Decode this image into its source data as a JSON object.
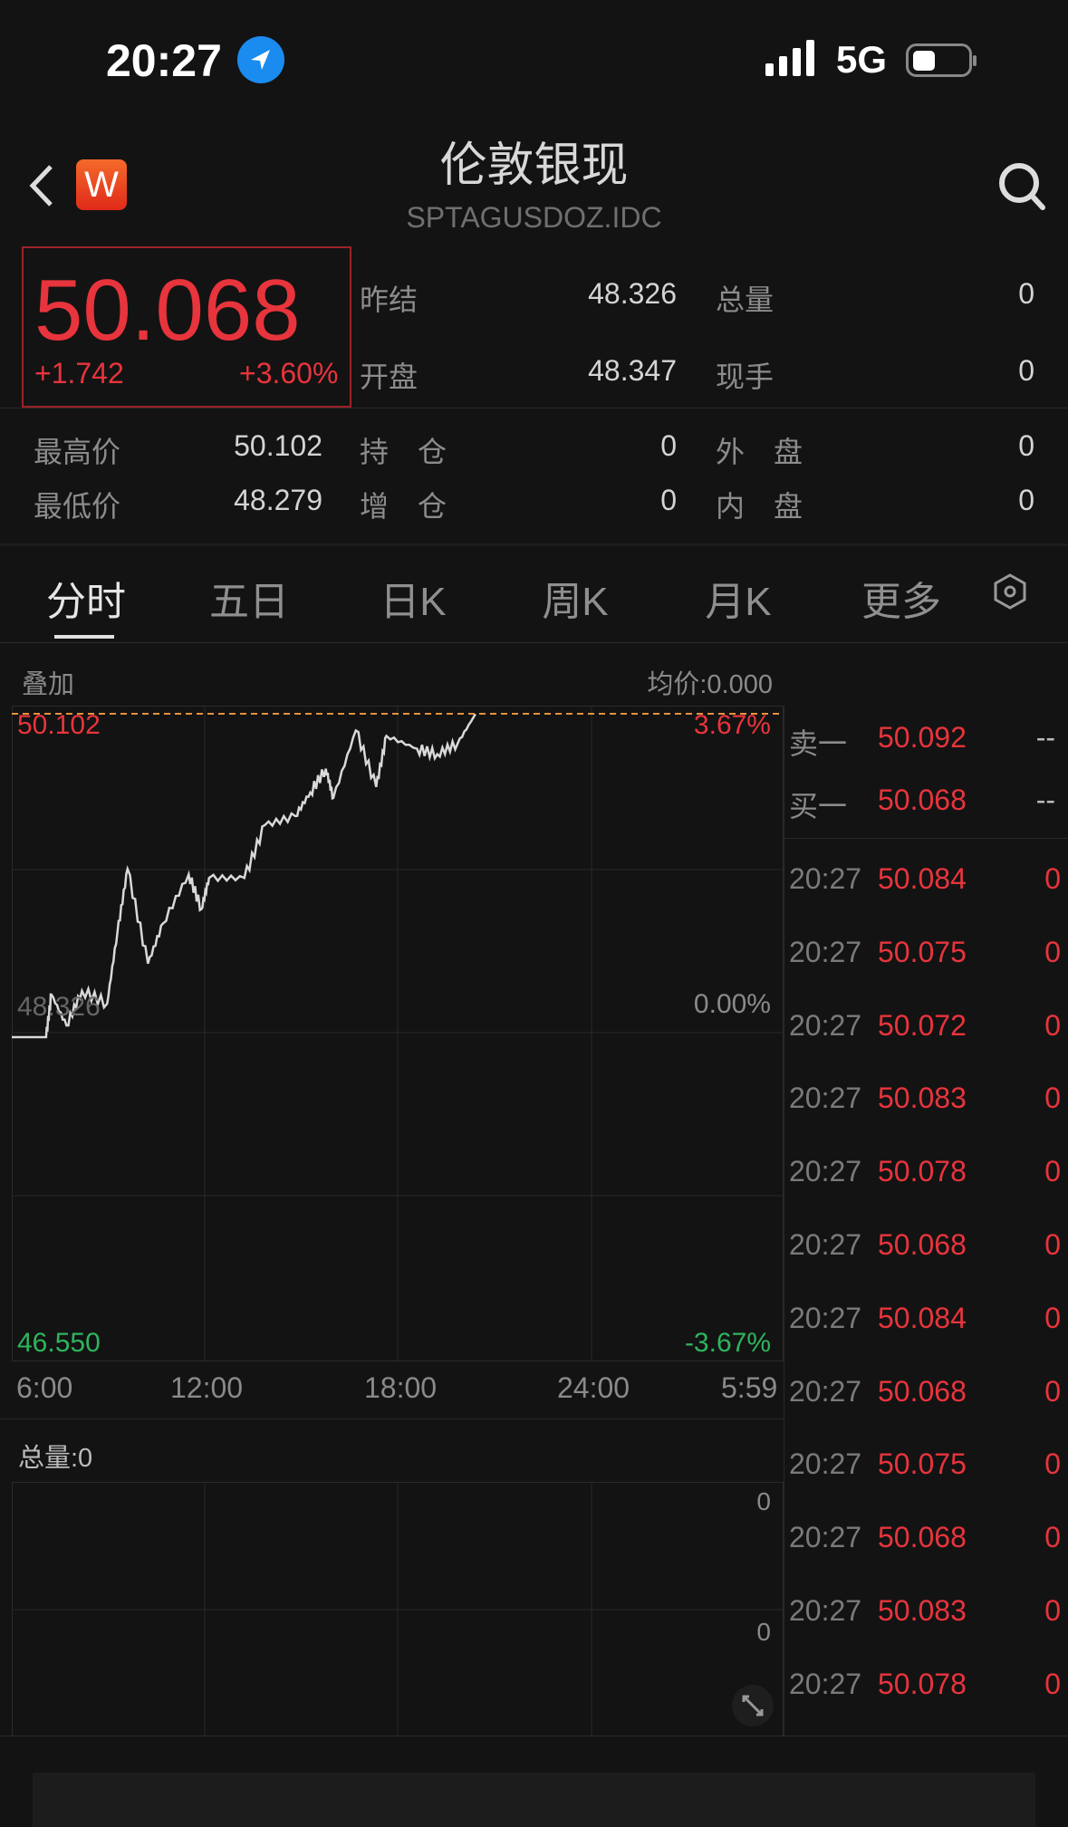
{
  "status_bar": {
    "time": "20:27",
    "network": "5G",
    "icons": [
      "location-arrow-icon",
      "signal-icon",
      "battery-icon"
    ]
  },
  "header": {
    "title": "伦敦银现",
    "code": "SPTAGUSDOZ.IDC",
    "badge": "W",
    "back_icon": "chevron-left-icon",
    "search_icon": "search-icon"
  },
  "quote": {
    "price": "50.068",
    "change": "+1.742",
    "change_pct": "+3.60%"
  },
  "stats": {
    "prev_settle": {
      "label": "昨结",
      "value": "48.326"
    },
    "open": {
      "label": "开盘",
      "value": "48.347"
    },
    "total_volume": {
      "label": "总量",
      "value": "0"
    },
    "current_hand": {
      "label": "现手",
      "value": "0"
    },
    "high": {
      "label": "最高价",
      "value": "50.102"
    },
    "low": {
      "label": "最低价",
      "value": "48.279"
    },
    "open_interest": {
      "label": "持　仓",
      "value": "0"
    },
    "oi_change": {
      "label": "增　仓",
      "value": "0"
    },
    "outer": {
      "label": "外　盘",
      "value": "0"
    },
    "inner": {
      "label": "内　盘",
      "value": "0"
    }
  },
  "tabs": [
    {
      "label": "分时",
      "active": true
    },
    {
      "label": "五日"
    },
    {
      "label": "日K"
    },
    {
      "label": "周K"
    },
    {
      "label": "月K"
    },
    {
      "label": "更多"
    }
  ],
  "chart": {
    "overlay_label": "叠加",
    "avg_price": "均价:0.000",
    "volume_label": "总量:0",
    "volume_ticks": [
      "0",
      "0"
    ]
  },
  "chart_data": {
    "type": "line",
    "y_labels_left": [
      "50.102",
      "48.326",
      "46.550"
    ],
    "y_labels_right": [
      "3.67%",
      "0.00%",
      "-3.67%"
    ],
    "x_labels": [
      "6:00",
      "12:00",
      "18:00",
      "24:00",
      "5:59"
    ],
    "ylim": [
      46.55,
      50.102
    ],
    "reference_line": 48.326,
    "high_line": 50.102,
    "grid": true,
    "series": [
      {
        "x": [
          "6:00",
          "7:04",
          "7:14",
          "7:42",
          "8:11",
          "8:58",
          "9:17",
          "9:36",
          "10:14",
          "10:42",
          "11:30",
          "11:54",
          "12:08",
          "13:14",
          "13:52",
          "14:49",
          "15:17",
          "15:46",
          "16:00",
          "16:42",
          "17:20",
          "17:39",
          "18:36",
          "19:14",
          "19:52",
          "20:25"
        ],
        "y": [
          48.326,
          48.326,
          48.56,
          48.39,
          48.58,
          48.51,
          48.9,
          49.25,
          48.73,
          48.95,
          49.22,
          49.03,
          49.2,
          49.2,
          49.49,
          49.54,
          49.67,
          49.8,
          49.64,
          50.01,
          49.7,
          49.98,
          49.91,
          49.88,
          49.94,
          50.1
        ]
      }
    ]
  },
  "order_book": [
    {
      "label": "卖一",
      "price": "50.092",
      "vol": "--"
    },
    {
      "label": "买一",
      "price": "50.068",
      "vol": "--"
    }
  ],
  "ticks": [
    {
      "time": "20:27",
      "price": "50.084",
      "vol": "0"
    },
    {
      "time": "20:27",
      "price": "50.075",
      "vol": "0"
    },
    {
      "time": "20:27",
      "price": "50.072",
      "vol": "0"
    },
    {
      "time": "20:27",
      "price": "50.083",
      "vol": "0"
    },
    {
      "time": "20:27",
      "price": "50.078",
      "vol": "0"
    },
    {
      "time": "20:27",
      "price": "50.068",
      "vol": "0"
    },
    {
      "time": "20:27",
      "price": "50.084",
      "vol": "0"
    },
    {
      "time": "20:27",
      "price": "50.068",
      "vol": "0"
    },
    {
      "time": "20:27",
      "price": "50.075",
      "vol": "0"
    },
    {
      "time": "20:27",
      "price": "50.068",
      "vol": "0"
    },
    {
      "time": "20:27",
      "price": "50.083",
      "vol": "0"
    },
    {
      "time": "20:27",
      "price": "50.078",
      "vol": "0"
    }
  ],
  "colors": {
    "up": "#e8343c",
    "down": "#2db55d",
    "background": "#131313",
    "line": "#d9d9d9",
    "high_dash": "#e8913c"
  }
}
